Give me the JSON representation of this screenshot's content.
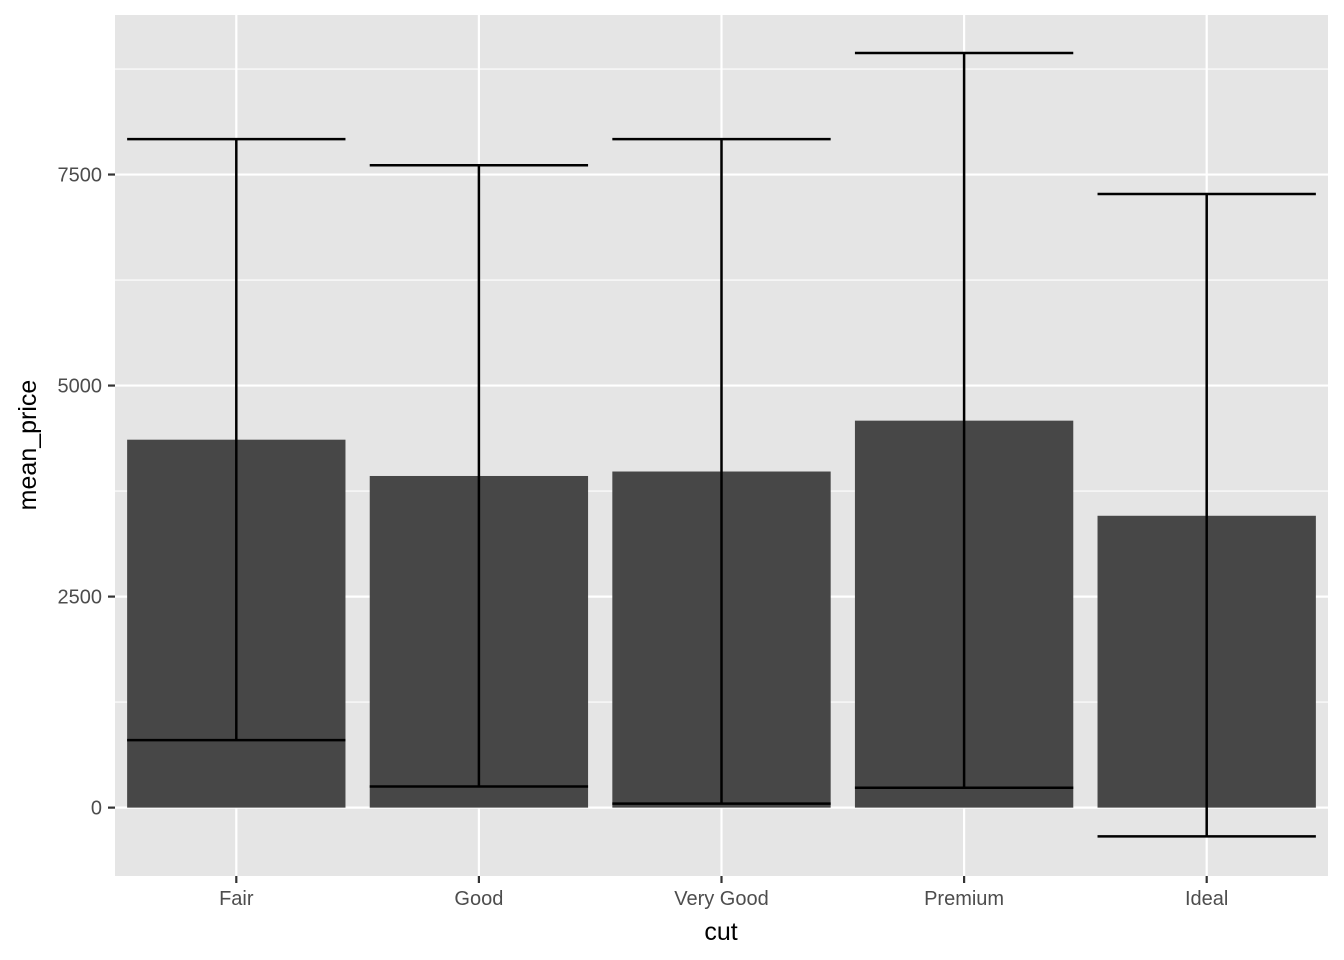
{
  "chart_data": {
    "type": "bar",
    "title": "",
    "xlabel": "cut",
    "ylabel": "mean_price",
    "categories": [
      "Fair",
      "Good",
      "Very Good",
      "Premium",
      "Ideal"
    ],
    "values": [
      4358.8,
      3928.9,
      3981.8,
      4584.3,
      3457.5
    ],
    "error_bars": {
      "lower": [
        800,
        251,
        48,
        236,
        -340
      ],
      "upper": [
        7920,
        7610,
        7920,
        8940,
        7270
      ]
    },
    "ylim": [
      -810,
      9390
    ],
    "yticks": [
      0,
      2500,
      5000,
      7500
    ],
    "ytick_labels": [
      "0",
      "2500",
      "5000",
      "7500"
    ],
    "grid": true,
    "legend": "none",
    "colors": {
      "panel_background": "#e5e5e5",
      "grid_line": "#ffffff",
      "bar_fill": "#474747",
      "error_bar": "#000000",
      "tick_label": "#4d4d4d",
      "axis_title": "#000000"
    }
  }
}
